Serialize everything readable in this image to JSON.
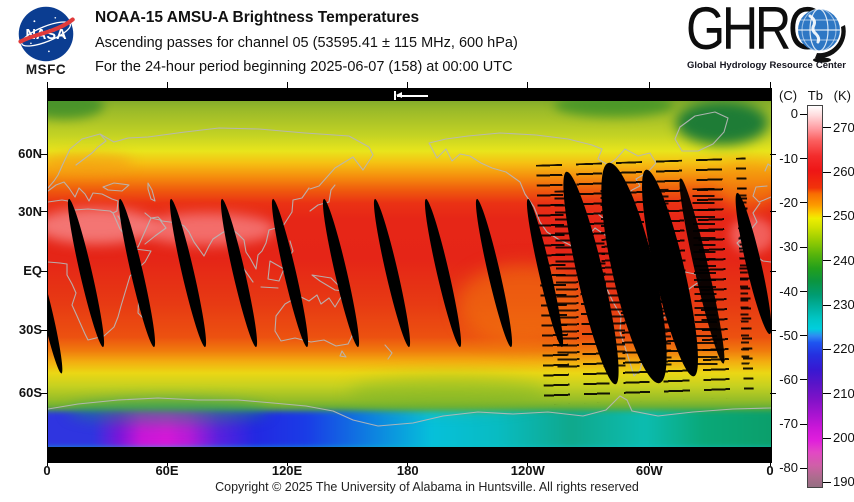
{
  "header": {
    "nasa": {
      "logo_text": "NASA",
      "caption": "MSFC"
    },
    "title": "NOAA-15 AMSU-A Brightness Temperatures",
    "subtitle": "Ascending passes for channel 05 (53595.41 ± 115 MHz, 600 hPa)",
    "period_line": "For the 24-hour period beginning 2025-06-07 (158) at 00:00 UTC",
    "ghrc": {
      "wordmark": "GHRC",
      "tagline_words": [
        "Global",
        "Hydrology",
        "Resource",
        "Center"
      ]
    }
  },
  "map": {
    "lat_ticks": [
      {
        "label": "60N",
        "y_pct": 17.7
      },
      {
        "label": "30N",
        "y_pct": 33.2
      },
      {
        "label": "EQ",
        "y_pct": 49.1
      },
      {
        "label": "30S",
        "y_pct": 64.9
      },
      {
        "label": "60S",
        "y_pct": 81.8
      }
    ],
    "lon_ticks": [
      {
        "label": "0",
        "x_pct": 0
      },
      {
        "label": "60E",
        "x_pct": 16.6
      },
      {
        "label": "120E",
        "x_pct": 33.2
      },
      {
        "label": "180",
        "x_pct": 49.9
      },
      {
        "label": "120W",
        "x_pct": 66.5
      },
      {
        "label": "60W",
        "x_pct": 83.3
      },
      {
        "label": "0",
        "x_pct": 100
      }
    ]
  },
  "colorbar": {
    "header": {
      "c": "(C)",
      "tb": "Tb",
      "k": "(K)"
    },
    "celsius": [
      {
        "label": "0",
        "pct": 2.4
      },
      {
        "label": "-10",
        "pct": 14.0
      },
      {
        "label": "-20",
        "pct": 25.5
      },
      {
        "label": "-30",
        "pct": 37.1
      },
      {
        "label": "-40",
        "pct": 48.7
      },
      {
        "label": "-50",
        "pct": 60.2
      },
      {
        "label": "-60",
        "pct": 71.8
      },
      {
        "label": "-70",
        "pct": 83.4
      },
      {
        "label": "-80",
        "pct": 94.9
      }
    ],
    "kelvin": [
      {
        "label": "270",
        "pct": 6.0
      },
      {
        "label": "260",
        "pct": 17.6
      },
      {
        "label": "250",
        "pct": 29.1
      },
      {
        "label": "240",
        "pct": 40.7
      },
      {
        "label": "230",
        "pct": 52.3
      },
      {
        "label": "220",
        "pct": 63.8
      },
      {
        "label": "210",
        "pct": 75.4
      },
      {
        "label": "200",
        "pct": 87.0
      },
      {
        "label": "190",
        "pct": 98.5
      }
    ]
  },
  "footer": {
    "copyright": "Copyright © 2025 The University of Alabama in Huntsville.  All rights reserved"
  },
  "chart_data": {
    "type": "heatmap",
    "title": "NOAA-15 AMSU-A Brightness Temperatures",
    "subtitle": "Ascending passes for channel 05 (53595.41 ± 115 MHz, 600 hPa)",
    "period": "For the 24-hour period beginning 2025-06-07 (158) at 00:00 UTC",
    "projection": "equirectangular global map, longitude 0E at left edge through 180 at center to 0 at right edge",
    "x_axis": {
      "label": "longitude",
      "ticks": [
        "0",
        "60E",
        "120E",
        "180",
        "120W",
        "60W",
        "0"
      ]
    },
    "y_axis": {
      "label": "latitude",
      "ticks": [
        "60N",
        "30N",
        "EQ",
        "30S",
        "60S"
      ]
    },
    "colorbar": {
      "title_units": [
        "(C)",
        "Tb",
        "(K)"
      ],
      "celsius_ticks": [
        0,
        -10,
        -20,
        -30,
        -40,
        -50,
        -60,
        -70,
        -80
      ],
      "kelvin_ticks": [
        270,
        260,
        250,
        240,
        230,
        220,
        210,
        200,
        190
      ],
      "range_k": [
        190,
        275
      ],
      "palette_stops": [
        {
          "k": 275,
          "hex": "#ffffff"
        },
        {
          "k": 270,
          "hex": "#ff9aa0"
        },
        {
          "k": 263,
          "hex": "#f32c2c"
        },
        {
          "k": 255,
          "hex": "#f86c02"
        },
        {
          "k": 250,
          "hex": "#eeee00"
        },
        {
          "k": 243,
          "hex": "#6cbe06"
        },
        {
          "k": 236,
          "hex": "#12933c"
        },
        {
          "k": 230,
          "hex": "#00ab96"
        },
        {
          "k": 224,
          "hex": "#00ccd8"
        },
        {
          "k": 219,
          "hex": "#1e4cee"
        },
        {
          "k": 212,
          "hex": "#4f16c8"
        },
        {
          "k": 204,
          "hex": "#a014cc"
        },
        {
          "k": 198,
          "hex": "#e02ad4"
        },
        {
          "k": 190,
          "hex": "#9f6e86"
        }
      ]
    },
    "zonal_mean_profile_estimated": [
      {
        "lat": "80N",
        "tb_k": 246
      },
      {
        "lat": "60N",
        "tb_k": 252
      },
      {
        "lat": "45N",
        "tb_k": 259
      },
      {
        "lat": "30N",
        "tb_k": 266
      },
      {
        "lat": "EQ",
        "tb_k": 268
      },
      {
        "lat": "30S",
        "tb_k": 263
      },
      {
        "lat": "45S",
        "tb_k": 252
      },
      {
        "lat": "60S",
        "tb_k": 242
      },
      {
        "lat": "70S",
        "tb_k": 228
      },
      {
        "lat": "80S",
        "tb_k": 205
      }
    ],
    "no_data_regions": "black = inter-orbit gaps between ascending swaths (thin diagonal slivers ~every 25.7 deg lon between 35N and 35S), a large missing-swath region over the Americas (~110W to 50W) with horizontal scanline dropouts, and black polar strips at top and bottom"
  }
}
